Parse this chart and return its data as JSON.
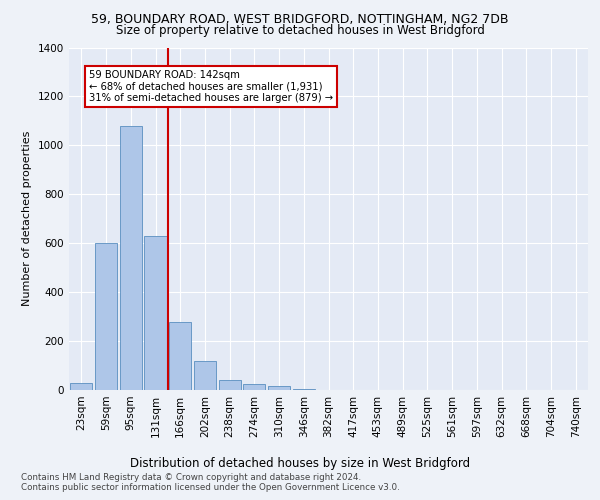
{
  "title1": "59, BOUNDARY ROAD, WEST BRIDGFORD, NOTTINGHAM, NG2 7DB",
  "title2": "Size of property relative to detached houses in West Bridgford",
  "xlabel": "Distribution of detached houses by size in West Bridgford",
  "ylabel": "Number of detached properties",
  "categories": [
    "23sqm",
    "59sqm",
    "95sqm",
    "131sqm",
    "166sqm",
    "202sqm",
    "238sqm",
    "274sqm",
    "310sqm",
    "346sqm",
    "382sqm",
    "417sqm",
    "453sqm",
    "489sqm",
    "525sqm",
    "561sqm",
    "597sqm",
    "632sqm",
    "668sqm",
    "704sqm",
    "740sqm"
  ],
  "values": [
    30,
    600,
    1080,
    630,
    280,
    120,
    40,
    25,
    15,
    5,
    0,
    0,
    0,
    0,
    0,
    0,
    0,
    0,
    0,
    0,
    0
  ],
  "bar_color": "#aec6e8",
  "bar_edge_color": "#5a8fc0",
  "vline_color": "#cc0000",
  "annotation_text": "59 BOUNDARY ROAD: 142sqm\n← 68% of detached houses are smaller (1,931)\n31% of semi-detached houses are larger (879) →",
  "annotation_box_color": "#ffffff",
  "annotation_border_color": "#cc0000",
  "ylim": [
    0,
    1400
  ],
  "yticks": [
    0,
    200,
    400,
    600,
    800,
    1000,
    1200,
    1400
  ],
  "footer1": "Contains HM Land Registry data © Crown copyright and database right 2024.",
  "footer2": "Contains public sector information licensed under the Open Government Licence v3.0.",
  "bg_color": "#eef2f8",
  "plot_bg_color": "#e4eaf5"
}
